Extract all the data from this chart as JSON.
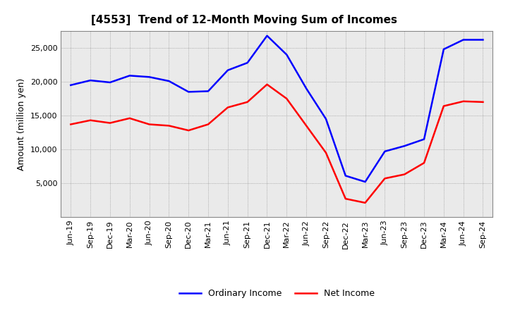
{
  "title": "[4553]  Trend of 12-Month Moving Sum of Incomes",
  "ylabel": "Amount (million yen)",
  "x_labels": [
    "Jun-19",
    "Sep-19",
    "Dec-19",
    "Mar-20",
    "Jun-20",
    "Sep-20",
    "Dec-20",
    "Mar-21",
    "Jun-21",
    "Sep-21",
    "Dec-21",
    "Mar-22",
    "Jun-22",
    "Sep-22",
    "Dec-22",
    "Mar-23",
    "Jun-23",
    "Sep-23",
    "Dec-23",
    "Mar-24",
    "Jun-24",
    "Sep-24"
  ],
  "ordinary_income": [
    19500,
    20200,
    19900,
    20900,
    20700,
    20100,
    18500,
    18600,
    21700,
    22800,
    26800,
    24000,
    19000,
    14500,
    6100,
    5200,
    9700,
    10500,
    11500,
    24800,
    26200,
    26200
  ],
  "net_income": [
    13700,
    14300,
    13900,
    14600,
    13700,
    13500,
    12800,
    13700,
    16200,
    17000,
    19600,
    17500,
    13500,
    9500,
    2700,
    2100,
    5700,
    6300,
    8000,
    16400,
    17100,
    17000
  ],
  "ordinary_color": "#0000FF",
  "net_color": "#FF0000",
  "background_color": "#FFFFFF",
  "plot_bg_color": "#EAEAEA",
  "grid_color": "#999999",
  "ylim": [
    0,
    27500
  ],
  "yticks": [
    5000,
    10000,
    15000,
    20000,
    25000
  ],
  "line_width": 1.8,
  "title_fontsize": 11,
  "axis_label_fontsize": 9,
  "tick_fontsize": 8,
  "legend_labels": [
    "Ordinary Income",
    "Net Income"
  ]
}
